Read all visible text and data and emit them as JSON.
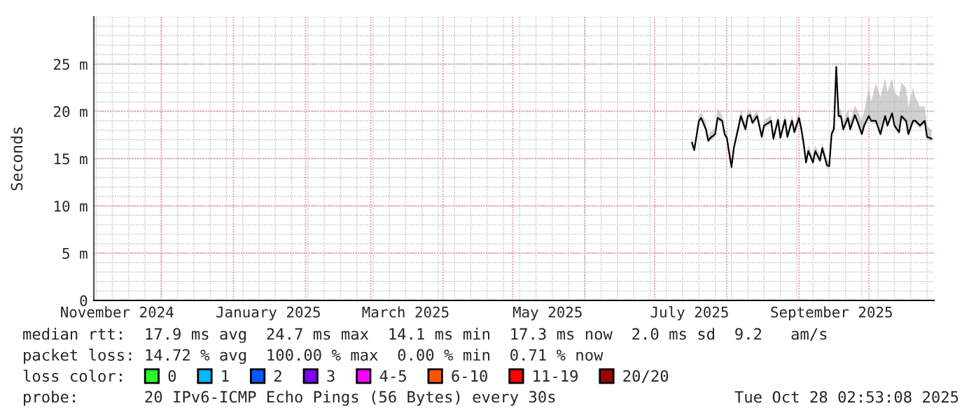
{
  "chart_data": {
    "type": "line",
    "ylabel": "Seconds",
    "xlim": [
      "2024-11-02",
      "2025-10-29"
    ],
    "xticks": [
      {
        "value": "2024-11-12",
        "label": "November 2024"
      },
      {
        "value": "2025-01-16",
        "label": "January 2025"
      },
      {
        "value": "2025-03-16",
        "label": "March 2025"
      },
      {
        "value": "2025-05-16",
        "label": "May 2025"
      },
      {
        "value": "2025-07-16",
        "label": "July 2025"
      },
      {
        "value": "2025-09-15",
        "label": "September 2025"
      }
    ],
    "ylim": [
      0,
      30
    ],
    "yticks": [
      0,
      {
        "value": 5,
        "label": "5 m"
      },
      {
        "value": 10,
        "label": "10 m"
      },
      {
        "value": 15,
        "label": "15 m"
      },
      {
        "value": 20,
        "label": "20 m"
      },
      {
        "value": 25,
        "label": "25 m"
      }
    ],
    "grid": true,
    "legend": "bottom",
    "legend_title": "loss color:",
    "series": [
      {
        "color": "#000000",
        "x": [
          "2025-07-17",
          "2025-07-18",
          "2025-07-20",
          "2025-07-21",
          "2025-07-23",
          "2025-07-24",
          "2025-07-25",
          "2025-07-27",
          "2025-07-28",
          "2025-07-30",
          "2025-07-31",
          "2025-08-01",
          "2025-08-02",
          "2025-08-03",
          "2025-08-04",
          "2025-08-06",
          "2025-08-07",
          "2025-08-09",
          "2025-08-10",
          "2025-08-11",
          "2025-08-12",
          "2025-08-14",
          "2025-08-16",
          "2025-08-17",
          "2025-08-19",
          "2025-08-20",
          "2025-08-21",
          "2025-08-23",
          "2025-08-24",
          "2025-08-26",
          "2025-08-27",
          "2025-08-29",
          "2025-08-30",
          "2025-09-01",
          "2025-09-02",
          "2025-09-03",
          "2025-09-04",
          "2025-09-05",
          "2025-09-07",
          "2025-09-08",
          "2025-09-10",
          "2025-09-11",
          "2025-09-13",
          "2025-09-14",
          "2025-09-15",
          "2025-09-16",
          "2025-09-17",
          "2025-09-18",
          "2025-09-19",
          "2025-09-20",
          "2025-09-22",
          "2025-09-23",
          "2025-09-25",
          "2025-09-26",
          "2025-09-28",
          "2025-09-29",
          "2025-10-01",
          "2025-10-02",
          "2025-10-04",
          "2025-10-06",
          "2025-10-08",
          "2025-10-09",
          "2025-10-11",
          "2025-10-12",
          "2025-10-14",
          "2025-10-15",
          "2025-10-17",
          "2025-10-18",
          "2025-10-20",
          "2025-10-21",
          "2025-10-23",
          "2025-10-25",
          "2025-10-26",
          "2025-10-28"
        ],
        "values": [
          16.7,
          15.9,
          19.0,
          19.3,
          18.1,
          16.9,
          17.2,
          17.6,
          19.3,
          19.0,
          17.6,
          17.2,
          15.6,
          14.1,
          16.1,
          18.3,
          19.5,
          18.1,
          19.5,
          19.6,
          18.8,
          19.5,
          17.3,
          18.5,
          18.8,
          19.0,
          17.1,
          19.1,
          17.2,
          19.1,
          17.3,
          19.0,
          17.8,
          19.3,
          18.1,
          16.6,
          14.6,
          15.8,
          14.6,
          15.8,
          14.8,
          16.1,
          14.3,
          14.2,
          17.6,
          18.1,
          24.7,
          19.5,
          19.5,
          18.1,
          19.3,
          18.1,
          19.6,
          19.0,
          17.6,
          18.5,
          19.5,
          19.0,
          19.0,
          17.6,
          19.5,
          18.5,
          19.8,
          18.5,
          17.8,
          19.5,
          19.0,
          17.6,
          19.0,
          19.0,
          18.5,
          19.0,
          17.3,
          17.1
        ],
        "lower": [
          16.4,
          15.6,
          18.7,
          19.0,
          17.8,
          16.6,
          16.9,
          17.3,
          19.0,
          18.7,
          17.3,
          16.9,
          15.3,
          13.8,
          15.8,
          18.0,
          19.2,
          17.8,
          19.2,
          19.3,
          18.5,
          19.2,
          17.0,
          18.2,
          18.5,
          18.7,
          16.8,
          18.8,
          16.9,
          18.8,
          17.0,
          18.7,
          17.5,
          19.0,
          17.8,
          16.3,
          14.3,
          15.5,
          14.3,
          15.5,
          14.5,
          15.8,
          14.0,
          13.9,
          17.3,
          17.8,
          24.4,
          19.2,
          19.2,
          17.8,
          19.0,
          17.8,
          19.3,
          18.7,
          17.3,
          18.2,
          19.2,
          18.7,
          18.7,
          17.3,
          19.2,
          18.2,
          19.5,
          18.2,
          17.5,
          19.2,
          18.7,
          17.3,
          18.7,
          18.7,
          18.2,
          18.7,
          17.0,
          16.8
        ],
        "upper": [
          17.2,
          16.4,
          19.6,
          19.9,
          18.8,
          17.5,
          17.8,
          18.2,
          20.3,
          19.6,
          18.2,
          17.8,
          16.2,
          14.7,
          16.7,
          18.9,
          20.1,
          18.7,
          20.1,
          20.2,
          19.4,
          20.1,
          17.9,
          19.1,
          19.4,
          19.6,
          17.7,
          19.7,
          17.8,
          19.7,
          17.9,
          19.6,
          18.4,
          19.9,
          18.7,
          17.2,
          15.2,
          16.4,
          15.2,
          16.4,
          15.4,
          16.7,
          14.9,
          14.8,
          18.2,
          18.7,
          25.0,
          20.1,
          20.3,
          18.9,
          20.2,
          19.0,
          20.6,
          20.2,
          19.0,
          20.0,
          22.5,
          21.0,
          23.0,
          21.5,
          23.5,
          22.0,
          23.5,
          22.0,
          21.5,
          23.0,
          22.5,
          20.5,
          22.5,
          21.5,
          20.5,
          20.5,
          18.5,
          18.0
        ]
      },
      {
        "name": "0",
        "color": "#22ff22"
      },
      {
        "name": "1",
        "color": "#00b8ff"
      },
      {
        "name": "2",
        "color": "#0059ff"
      },
      {
        "name": "3",
        "color": "#7e00ff"
      },
      {
        "name": "4-5",
        "color": "#ff00ff"
      },
      {
        "name": "6-10",
        "color": "#ff5500"
      },
      {
        "name": "11-19",
        "color": "#ff0000"
      },
      {
        "name": "20/20",
        "color": "#a10000"
      }
    ],
    "annotations": [
      "median rtt:  17.9 ms avg  24.7 ms max  14.1 ms min  17.3 ms now  2.0 ms sd  9.2   am/s",
      "packet loss: 14.72 % avg  100.00 % max  0.00 % min  0.71 % now",
      "probe:       20 IPv6-ICMP Echo Pings (56 Bytes) every 30s",
      "Tue Oct 28 02:53:08 2025"
    ]
  }
}
